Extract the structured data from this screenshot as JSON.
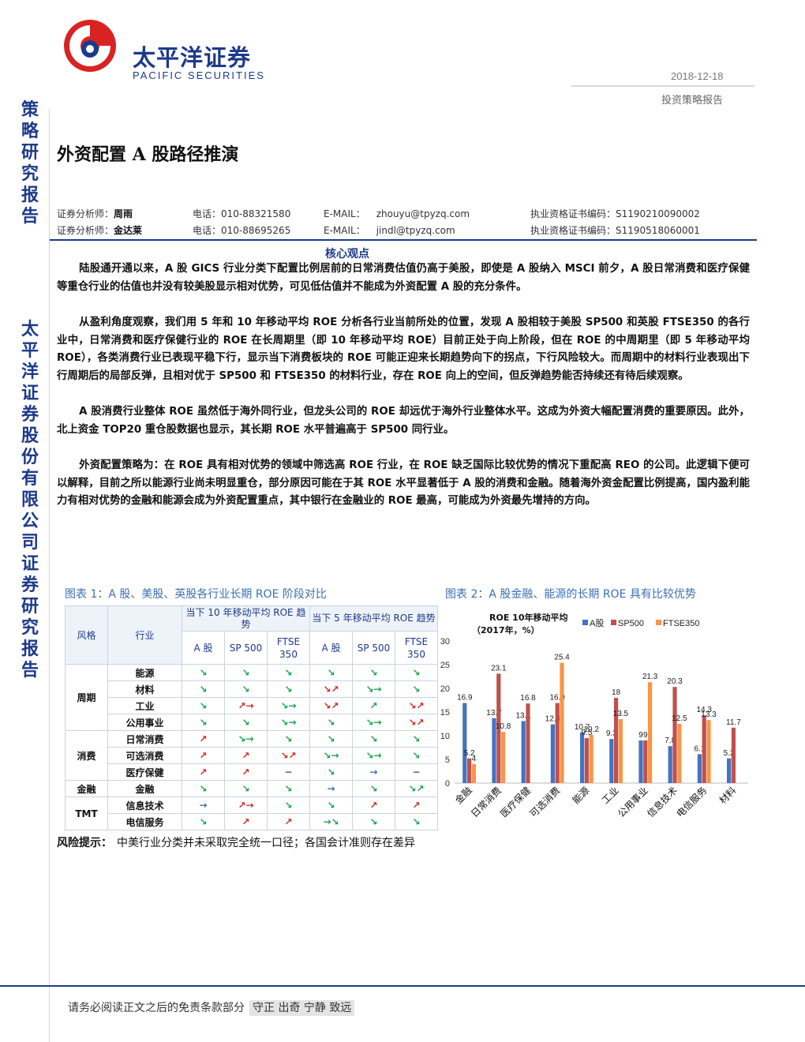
{
  "header": {
    "company_cn": "太平洋证券",
    "company_en": "PACIFIC SECURITIES",
    "date": "2018-12-18",
    "report_type": "投资策略报告"
  },
  "sidebar": {
    "top_label": "策略研究报告",
    "bottom_label": "太平洋证券股份有限公司证券研究报告"
  },
  "title": "外资配置 A 股路径推演",
  "analysts": [
    {
      "role": "证券分析师：",
      "name": "周雨",
      "phone_label": "电话：",
      "phone": "010-88321580",
      "email_label": "E-MAIL：",
      "email": "zhouyu@tpyzq.com",
      "cert_label": "执业资格证书编码：",
      "cert": "S1190210090002"
    },
    {
      "role": "证券分析师：",
      "name": "金达莱",
      "phone_label": "电话：",
      "phone": "010-88695265",
      "email_label": "E-MAIL：",
      "email": "jindl@tpyzq.com",
      "cert_label": "执业资格证书编码：",
      "cert": "S1190518060001"
    }
  ],
  "section_title": "核心观点",
  "paragraphs": [
    "陆股通开通以来，A 股 GICS 行业分类下配置比例居前的日常消费估值仍高于美股，即使是 A 股纳入 MSCI 前夕，A 股日常消费和医疗保健等重仓行业的估值也并没有较美股显示相对优势，可见低估值并不能成为外资配置 A 股的充分条件。",
    "从盈利角度观察，我们用 5 年和 10 年移动平均 ROE 分析各行业当前所处的位置，发现 A 股相较于美股 SP500 和英股 FTSE350 的各行业中，日常消费和医疗保健行业的 ROE 在长周期里（即 10 年移动平均 ROE）目前正处于向上阶段，但在 ROE 的中周期里（即 5 年移动平均 ROE），各类消费行业已表现平稳下行，显示当下消费板块的 ROE 可能正迎来长期趋势向下的拐点，下行风险较大。而周期中的材料行业表现出下行周期后的局部反弹，且相对优于 SP500 和 FTSE350 的材料行业，存在 ROE 向上的空间，但反弹趋势能否持续还有待后续观察。",
    "A 股消费行业整体 ROE 虽然低于海外同行业，但龙头公司的 ROE 却远优于海外行业整体水平。这成为外资大幅配置消费的重要原因。此外，北上资金 TOP20 重仓股数据也显示，其长期 ROE 水平普遍高于 SP500 同行业。",
    "外资配置策略为：在 ROE 具有相对优势的领域中筛选高 ROE 行业，在 ROE 缺乏国际比较优势的情况下重配高 REO 的公司。此逻辑下便可以解释，目前之所以能源行业尚未明显重仓，部分原因可能在于其 ROE 水平显著低于 A 股的消费和金融。随着海外资金配置比例提高，国内盈利能力有相对优势的金融和能源会成为外资配置重点，其中银行在金融业的 ROE 最高，可能成为外资最先增持的方向。"
  ],
  "figure1": {
    "title": "图表 1：A 股、美股、英股各行业长期 ROE 阶段对比",
    "head": {
      "style": "风格",
      "industry": "行业",
      "ten": "当下 10 年移动平均 ROE 趋势",
      "five": "当下 5 年移动平均 ROE 趋势",
      "a": "A 股",
      "sp": "SP 500",
      "ftse": "FTSE 350"
    },
    "groups": [
      {
        "name": "周期",
        "rows": [
          {
            "industry": "能源",
            "cells": [
              [
                "↘",
                "g"
              ],
              [
                "↘",
                "g"
              ],
              [
                "↘",
                "g"
              ],
              [
                "↘",
                "g"
              ],
              [
                "↘",
                "g"
              ],
              [
                "↘",
                "g"
              ]
            ]
          },
          {
            "industry": "材料",
            "cells": [
              [
                "↘",
                "g"
              ],
              [
                "↘",
                "g"
              ],
              [
                "↘",
                "g"
              ],
              [
                "↘↗",
                "r"
              ],
              [
                "↘→",
                "g"
              ],
              [
                "↘",
                "g"
              ]
            ]
          },
          {
            "industry": "工业",
            "cells": [
              [
                "↘",
                "g"
              ],
              [
                "↗→",
                "r"
              ],
              [
                "↘→",
                "g"
              ],
              [
                "↘↗",
                "r"
              ],
              [
                "↗",
                "g"
              ],
              [
                "↘↗",
                "r"
              ]
            ]
          },
          {
            "industry": "公用事业",
            "cells": [
              [
                "↘",
                "g"
              ],
              [
                "↘",
                "g"
              ],
              [
                "↘→",
                "g"
              ],
              [
                "↘",
                "g"
              ],
              [
                "↘→",
                "g"
              ],
              [
                "↘↗",
                "r"
              ]
            ]
          }
        ]
      },
      {
        "name": "消费",
        "rows": [
          {
            "industry": "日常消费",
            "cells": [
              [
                "↗",
                "r"
              ],
              [
                "↘→",
                "g"
              ],
              [
                "↘",
                "g"
              ],
              [
                "↘",
                "g"
              ],
              [
                "↘",
                "g"
              ],
              [
                "↘",
                "g"
              ]
            ]
          },
          {
            "industry": "可选消费",
            "cells": [
              [
                "↗",
                "r"
              ],
              [
                "↗",
                "r"
              ],
              [
                "↘↗",
                "r"
              ],
              [
                "↘→",
                "g"
              ],
              [
                "↘→",
                "g"
              ],
              [
                "↘",
                "g"
              ]
            ]
          },
          {
            "industry": "医疗保健",
            "cells": [
              [
                "↗",
                "r"
              ],
              [
                "↗",
                "r"
              ],
              [
                "−",
                "k"
              ],
              [
                "↘",
                "g"
              ],
              [
                "→",
                "b"
              ],
              [
                "−",
                "k"
              ]
            ]
          }
        ]
      },
      {
        "name": "金融",
        "rows": [
          {
            "industry": "金融",
            "cells": [
              [
                "↘",
                "g"
              ],
              [
                "↘",
                "g"
              ],
              [
                "↘",
                "g"
              ],
              [
                "→",
                "b"
              ],
              [
                "↘",
                "g"
              ],
              [
                "↘↗",
                "g"
              ]
            ]
          }
        ]
      },
      {
        "name": "TMT",
        "rows": [
          {
            "industry": "信息技术",
            "cells": [
              [
                "→",
                "b"
              ],
              [
                "↗→",
                "r"
              ],
              [
                "↘",
                "g"
              ],
              [
                "↘",
                "g"
              ],
              [
                "↗",
                "r"
              ],
              [
                "↗",
                "r"
              ]
            ]
          },
          {
            "industry": "电信服务",
            "cells": [
              [
                "↘",
                "g"
              ],
              [
                "↗",
                "r"
              ],
              [
                "↗",
                "r"
              ],
              [
                "→↘",
                "g"
              ],
              [
                "↘",
                "g"
              ],
              [
                "↘",
                "g"
              ]
            ]
          }
        ]
      }
    ]
  },
  "figure2": {
    "title": "图表 2：A 股金融、能源的长期 ROE 具有比较优势"
  },
  "chart_data": {
    "type": "bar",
    "title": "ROE 10年移动平均（2017年，%）",
    "categories": [
      "金融",
      "日常消费",
      "医疗保健",
      "可选消费",
      "能源",
      "工业",
      "公用事业",
      "信息技术",
      "电信服务",
      "材料"
    ],
    "series": [
      {
        "name": "A股",
        "color": "#4472c4",
        "values": [
          16.9,
          13.7,
          13.1,
          12.4,
          10.7,
          9.3,
          9.0,
          7.8,
          6.1,
          5.2
        ]
      },
      {
        "name": "SP500",
        "color": "#c0504d",
        "values": [
          5.2,
          23.1,
          16.8,
          16.9,
          9.5,
          18.0,
          9.0,
          20.3,
          14.3,
          11.7
        ]
      },
      {
        "name": "FTSE350",
        "color": "#f79646",
        "values": [
          4.0,
          10.8,
          null,
          25.4,
          10.2,
          13.5,
          21.3,
          12.5,
          13.3,
          null
        ]
      }
    ],
    "ylim": [
      0,
      30
    ],
    "yticks": [
      0,
      5,
      10,
      15,
      20,
      25,
      30
    ],
    "legend": "top-right",
    "grid": false
  },
  "risk": {
    "label": "风险提示：",
    "text": "中美行业分类并未采取完全统一口径；各国会计准则存在差异"
  },
  "footer": {
    "text": "请务必阅读正文之后的免责条款部分",
    "motto": "守正 出奇 宁静 致远"
  }
}
